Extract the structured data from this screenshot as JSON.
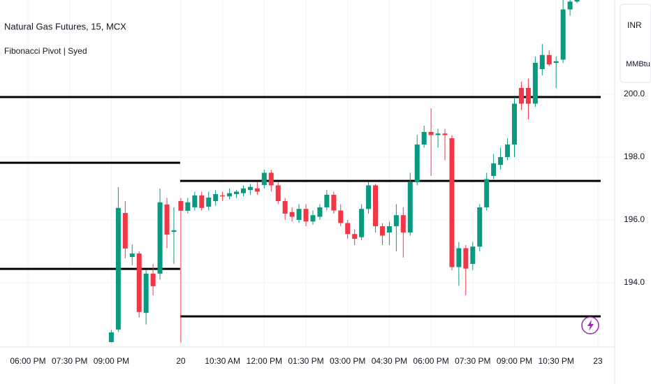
{
  "chart_data": {
    "type": "candlestick",
    "title": "Natural Gas Futures, 15, MCX",
    "subtitle": "Fibonacci Pivot | Syed",
    "currency": "INR",
    "unit": "MMBtu",
    "up_color": "#089981",
    "down_color": "#f23645",
    "pivot_color": "#000000",
    "grid": true,
    "ylim": [
      192.11,
      203.0
    ],
    "yticks": [
      {
        "value": 194,
        "label": "194.0"
      },
      {
        "value": 196,
        "label": "196.0"
      },
      {
        "value": 198,
        "label": "198.0"
      },
      {
        "value": 200,
        "label": "200.0"
      }
    ],
    "categories": [
      "06:00 PM",
      null,
      null,
      null,
      null,
      null,
      "07:30 PM",
      null,
      null,
      null,
      null,
      null,
      "09:00 PM",
      null,
      null,
      null,
      null,
      null,
      null,
      null,
      null,
      null,
      "20",
      null,
      null,
      null,
      null,
      null,
      "10:30 AM",
      null,
      null,
      null,
      null,
      null,
      "12:00 PM",
      null,
      null,
      null,
      null,
      null,
      "01:30 PM",
      null,
      null,
      null,
      null,
      null,
      "03:00 PM",
      null,
      null,
      null,
      null,
      null,
      "04:30 PM",
      null,
      null,
      null,
      null,
      null,
      "06:00 PM",
      null,
      null,
      null,
      null,
      null,
      "07:30 PM",
      null,
      null,
      null,
      null,
      null,
      "09:00 PM",
      null,
      null,
      null,
      null,
      null,
      "10:30 PM",
      null,
      null,
      null,
      null,
      null,
      "23"
    ],
    "open": [
      null,
      null,
      null,
      null,
      null,
      null,
      null,
      null,
      null,
      null,
      null,
      null,
      192.11,
      192.51,
      196.22,
      194.82,
      194.93,
      193.04,
      194.29,
      194.29,
      196.49,
      195.62,
      196.6,
      196.29,
      196.4,
      196.78,
      196.42,
      196.6,
      196.78,
      196.75,
      196.82,
      196.85,
      196.95,
      197.0,
      197.11,
      197.5,
      197.1,
      196.6,
      196.25,
      196.0,
      196.35,
      195.95,
      196.1,
      196.4,
      196.8,
      196.3,
      195.9,
      195.55,
      195.45,
      196.35,
      197.1,
      195.8,
      195.6,
      195.8,
      196.15,
      195.6,
      197.2,
      198.4,
      198.8,
      198.7,
      198.75,
      198.6,
      194.5,
      195.1,
      194.6,
      195.15,
      196.4,
      197.4,
      197.75,
      198.0,
      198.4,
      200.2,
      200.2,
      199.7,
      200.8,
      201.25,
      201.0,
      201.1,
      202.7,
      202.95,
      null,
      null,
      null
    ],
    "high": [
      null,
      null,
      null,
      null,
      null,
      null,
      null,
      null,
      null,
      null,
      null,
      null,
      192.5,
      197.04,
      196.6,
      195.22,
      195.0,
      194.4,
      194.6,
      197.0,
      196.7,
      196.4,
      196.7,
      196.7,
      196.9,
      196.9,
      196.9,
      196.95,
      196.9,
      197.0,
      196.95,
      197.1,
      197.15,
      197.2,
      197.6,
      197.6,
      197.2,
      196.7,
      196.4,
      196.5,
      196.5,
      196.3,
      196.5,
      196.95,
      196.9,
      196.5,
      196.0,
      195.7,
      196.5,
      197.2,
      197.15,
      195.9,
      195.95,
      196.5,
      196.4,
      197.5,
      198.7,
      199.0,
      199.55,
      198.9,
      198.9,
      198.7,
      195.3,
      195.2,
      195.3,
      196.5,
      197.5,
      198.1,
      198.3,
      198.6,
      199.9,
      200.4,
      200.5,
      201.2,
      201.6,
      201.4,
      201.2,
      203.0,
      203.1,
      203.1,
      null,
      null,
      null
    ],
    "low": [
      null,
      null,
      null,
      null,
      null,
      null,
      null,
      null,
      null,
      null,
      null,
      null,
      192.1,
      192.44,
      194.78,
      194.56,
      192.89,
      192.67,
      193.6,
      194.1,
      195.1,
      194.6,
      192.1,
      196.2,
      196.3,
      196.3,
      196.3,
      196.45,
      196.6,
      196.65,
      196.7,
      196.75,
      196.8,
      196.8,
      197.0,
      196.9,
      196.5,
      196.0,
      195.95,
      195.9,
      195.8,
      195.85,
      196.0,
      196.3,
      196.2,
      195.8,
      195.4,
      195.2,
      195.35,
      196.2,
      195.6,
      195.2,
      195.2,
      195.0,
      194.8,
      195.5,
      197.1,
      198.3,
      197.4,
      198.3,
      197.9,
      194.4,
      193.9,
      193.6,
      194.4,
      195.0,
      196.3,
      197.3,
      197.6,
      197.9,
      198.0,
      199.5,
      199.2,
      199.6,
      200.6,
      200.9,
      200.2,
      201.0,
      202.5,
      202.9,
      null,
      null,
      null
    ],
    "close": [
      null,
      null,
      null,
      null,
      null,
      null,
      null,
      null,
      null,
      null,
      null,
      null,
      192.42,
      196.38,
      195.09,
      194.93,
      193.07,
      194.29,
      193.89,
      196.56,
      195.53,
      195.67,
      196.29,
      196.56,
      196.78,
      196.38,
      196.71,
      196.82,
      196.75,
      196.85,
      196.9,
      197.0,
      197.05,
      196.9,
      197.5,
      197.1,
      196.6,
      196.2,
      196.1,
      196.35,
      195.95,
      196.15,
      196.4,
      196.8,
      196.3,
      195.9,
      195.55,
      195.4,
      196.35,
      197.1,
      195.8,
      195.5,
      195.8,
      196.15,
      195.6,
      197.2,
      198.4,
      198.8,
      198.7,
      198.75,
      198.7,
      194.5,
      195.1,
      194.45,
      195.15,
      196.4,
      197.3,
      197.8,
      198.0,
      198.4,
      199.7,
      199.7,
      199.7,
      201.0,
      201.25,
      200.95,
      201.05,
      202.7,
      202.95,
      203.0,
      null,
      null,
      null
    ],
    "pivots_prev_session": [
      199.91,
      197.82,
      194.44
    ],
    "pivots_session": [
      199.91,
      197.24,
      192.93
    ]
  }
}
